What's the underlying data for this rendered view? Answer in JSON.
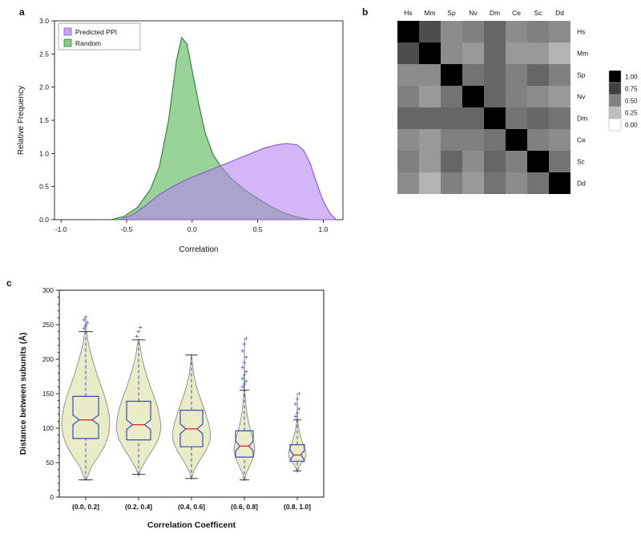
{
  "panels": {
    "a": {
      "label": "a"
    },
    "b": {
      "label": "b"
    },
    "c": {
      "label": "c"
    }
  },
  "chart_data": [
    {
      "panel": "a",
      "type": "area",
      "title": "",
      "xlabel": "Correlation",
      "ylabel": "Relative Frequency",
      "xlim": [
        -1.05,
        1.15
      ],
      "ylim": [
        0.0,
        3.0
      ],
      "xticks": [
        -1.0,
        -0.5,
        0.0,
        0.5,
        1.0
      ],
      "yticks": [
        0.0,
        0.5,
        1.0,
        1.5,
        2.0,
        2.5,
        3.0
      ],
      "legend_position": "upper-left",
      "series": [
        {
          "name": "Random",
          "edge_color": "#2e7d32",
          "fill_color": "#5cb85c",
          "fill_opacity": 0.62,
          "x": [
            -0.62,
            -0.52,
            -0.42,
            -0.32,
            -0.25,
            -0.18,
            -0.12,
            -0.08,
            -0.04,
            0.0,
            0.05,
            0.1,
            0.16,
            0.22,
            0.3,
            0.4,
            0.5,
            0.6,
            0.7,
            0.8,
            0.9
          ],
          "y": [
            0,
            0.05,
            0.18,
            0.45,
            0.8,
            1.5,
            2.4,
            2.75,
            2.65,
            2.25,
            1.75,
            1.3,
            0.98,
            0.8,
            0.62,
            0.45,
            0.32,
            0.2,
            0.1,
            0.04,
            0
          ]
        },
        {
          "name": "Predicted PPI",
          "edge_color": "#8657cf",
          "fill_color": "#b685ef",
          "fill_opacity": 0.6,
          "x": [
            -0.55,
            -0.45,
            -0.35,
            -0.25,
            -0.15,
            -0.05,
            0.05,
            0.15,
            0.25,
            0.35,
            0.45,
            0.55,
            0.65,
            0.72,
            0.8,
            0.85,
            0.9,
            0.95,
            1.0,
            1.05,
            1.1
          ],
          "y": [
            0,
            0.08,
            0.22,
            0.38,
            0.5,
            0.6,
            0.68,
            0.76,
            0.84,
            0.92,
            1.0,
            1.08,
            1.13,
            1.15,
            1.13,
            1.05,
            0.85,
            0.55,
            0.28,
            0.1,
            0
          ]
        }
      ],
      "legend_entries": [
        "Predicted PPI",
        "Random"
      ]
    },
    {
      "panel": "b",
      "type": "heatmap",
      "labels": [
        "Hs",
        "Mm",
        "Sp",
        "Nv",
        "Dm",
        "Ce",
        "Sc",
        "Dd"
      ],
      "colorbar_ticks": [
        "1.00",
        "0.75",
        "0.50",
        "0.25",
        "0.00"
      ],
      "values": [
        [
          1.0,
          0.7,
          0.45,
          0.5,
          0.6,
          0.45,
          0.5,
          0.45
        ],
        [
          0.7,
          1.0,
          0.45,
          0.4,
          0.6,
          0.4,
          0.4,
          0.3
        ],
        [
          0.45,
          0.45,
          1.0,
          0.55,
          0.6,
          0.5,
          0.6,
          0.5
        ],
        [
          0.5,
          0.4,
          0.55,
          1.0,
          0.6,
          0.5,
          0.45,
          0.4
        ],
        [
          0.6,
          0.6,
          0.6,
          0.6,
          1.0,
          0.55,
          0.6,
          0.55
        ],
        [
          0.45,
          0.4,
          0.5,
          0.5,
          0.55,
          1.0,
          0.5,
          0.45
        ],
        [
          0.5,
          0.4,
          0.6,
          0.45,
          0.6,
          0.5,
          1.0,
          0.55
        ],
        [
          0.45,
          0.3,
          0.5,
          0.4,
          0.55,
          0.45,
          0.55,
          1.0
        ]
      ]
    },
    {
      "panel": "c",
      "type": "violin-box",
      "xlabel": "Correlation Coefficent",
      "ylabel": "Distance between subunits (Å)",
      "ylim": [
        0,
        300
      ],
      "yticks": [
        0,
        50,
        100,
        150,
        200,
        250,
        300
      ],
      "categories": [
        "(0.0, 0.2]",
        "(0.2, 0.4]",
        "(0.4, 0.6]",
        "(0.6, 0.8]",
        "(0.8, 1.0]"
      ],
      "colors": {
        "violin_fill": "#e9ecc7",
        "violin_edge": "#8a8a8a",
        "box": "#3b4bbf",
        "median": "#e03030",
        "whisker": "#3b4bbf",
        "cap": "#333333",
        "outlier": "#4a5fc0"
      },
      "boxes": [
        {
          "whisker_low": 25,
          "q1": 85,
          "median": 112,
          "q3": 146,
          "whisker_high": 240,
          "outliers_high": [
            245,
            249,
            253,
            257,
            261
          ],
          "outliers_low": []
        },
        {
          "whisker_low": 33,
          "q1": 83,
          "median": 105,
          "q3": 139,
          "whisker_high": 228,
          "outliers_high": [
            233,
            240,
            246
          ],
          "outliers_low": []
        },
        {
          "whisker_low": 27,
          "q1": 73,
          "median": 99,
          "q3": 126,
          "whisker_high": 206,
          "outliers_high": [],
          "outliers_low": []
        },
        {
          "whisker_low": 25,
          "q1": 58,
          "median": 74,
          "q3": 96,
          "whisker_high": 155,
          "outliers_high": [
            160,
            164,
            168,
            172,
            177,
            182,
            188,
            195,
            203,
            212,
            222,
            230
          ],
          "outliers_low": []
        },
        {
          "whisker_low": 38,
          "q1": 52,
          "median": 61,
          "q3": 76,
          "whisker_high": 112,
          "outliers_high": [
            117,
            122,
            128,
            135,
            142,
            150
          ],
          "outliers_low": []
        }
      ],
      "violins": [
        {
          "max_halfwidth": 30,
          "box_halfwidth": 16,
          "profile": [
            [
              24,
              0.0
            ],
            [
              30,
              0.08
            ],
            [
              45,
              0.25
            ],
            [
              60,
              0.55
            ],
            [
              75,
              0.8
            ],
            [
              90,
              0.95
            ],
            [
              105,
              1.0
            ],
            [
              120,
              0.97
            ],
            [
              135,
              0.88
            ],
            [
              150,
              0.75
            ],
            [
              165,
              0.6
            ],
            [
              180,
              0.45
            ],
            [
              195,
              0.32
            ],
            [
              210,
              0.2
            ],
            [
              225,
              0.1
            ],
            [
              240,
              0.04
            ],
            [
              252,
              0.01
            ],
            [
              260,
              0.0
            ]
          ]
        },
        {
          "max_halfwidth": 28,
          "box_halfwidth": 15,
          "profile": [
            [
              30,
              0.0
            ],
            [
              40,
              0.1
            ],
            [
              55,
              0.35
            ],
            [
              70,
              0.65
            ],
            [
              85,
              0.9
            ],
            [
              100,
              1.0
            ],
            [
              115,
              0.95
            ],
            [
              130,
              0.85
            ],
            [
              145,
              0.7
            ],
            [
              160,
              0.52
            ],
            [
              175,
              0.38
            ],
            [
              190,
              0.24
            ],
            [
              205,
              0.13
            ],
            [
              220,
              0.06
            ],
            [
              230,
              0.0
            ]
          ]
        },
        {
          "max_halfwidth": 24,
          "box_halfwidth": 14,
          "profile": [
            [
              26,
              0.0
            ],
            [
              38,
              0.12
            ],
            [
              52,
              0.4
            ],
            [
              66,
              0.72
            ],
            [
              80,
              0.95
            ],
            [
              92,
              1.0
            ],
            [
              106,
              0.9
            ],
            [
              120,
              0.75
            ],
            [
              134,
              0.58
            ],
            [
              148,
              0.4
            ],
            [
              162,
              0.25
            ],
            [
              176,
              0.13
            ],
            [
              192,
              0.05
            ],
            [
              208,
              0.0
            ]
          ]
        },
        {
          "max_halfwidth": 13,
          "box_halfwidth": 11,
          "profile": [
            [
              23,
              0.0
            ],
            [
              33,
              0.15
            ],
            [
              45,
              0.5
            ],
            [
              57,
              0.85
            ],
            [
              68,
              1.0
            ],
            [
              80,
              0.9
            ],
            [
              92,
              0.68
            ],
            [
              105,
              0.45
            ],
            [
              118,
              0.28
            ],
            [
              132,
              0.16
            ],
            [
              146,
              0.08
            ],
            [
              158,
              0.04
            ],
            [
              175,
              0.02
            ],
            [
              200,
              0.01
            ],
            [
              230,
              0.0
            ]
          ]
        },
        {
          "max_halfwidth": 11,
          "box_halfwidth": 9,
          "profile": [
            [
              36,
              0.0
            ],
            [
              44,
              0.2
            ],
            [
              52,
              0.65
            ],
            [
              60,
              1.0
            ],
            [
              68,
              0.92
            ],
            [
              76,
              0.68
            ],
            [
              86,
              0.42
            ],
            [
              96,
              0.22
            ],
            [
              106,
              0.1
            ],
            [
              114,
              0.04
            ],
            [
              130,
              0.01
            ],
            [
              150,
              0.0
            ]
          ]
        }
      ]
    }
  ]
}
